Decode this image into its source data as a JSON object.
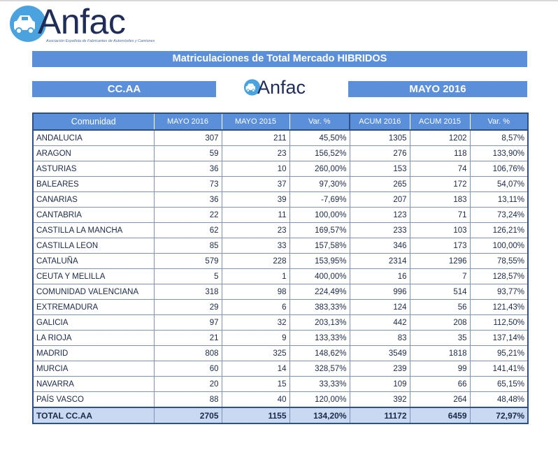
{
  "logo": {
    "brand": "Anfac",
    "tagline": "Asociación Española de Fabricantes de Automóviles y Camiones",
    "icon": "car-globe-icon"
  },
  "title": "Matriculaciones de Total Mercado HIBRIDOS",
  "sub_left": "CC.AA",
  "sub_right": "MAYO 2016",
  "colors": {
    "header_blue": "#5b8fd9",
    "total_row": "#c9d9f1",
    "border_dark": "#2d4f8a",
    "brand_navy": "#1f2d58"
  },
  "table": {
    "headers": [
      "Comunidad",
      "MAYO 2016",
      "MAYO 2015",
      "Var. %",
      "ACUM 2016",
      "ACUM 2015",
      "Var. %"
    ],
    "rows": [
      [
        "ANDALUCIA",
        "307",
        "211",
        "45,50%",
        "1305",
        "1202",
        "8,57%"
      ],
      [
        "ARAGON",
        "59",
        "23",
        "156,52%",
        "276",
        "118",
        "133,90%"
      ],
      [
        "ASTURIAS",
        "36",
        "10",
        "260,00%",
        "153",
        "74",
        "106,76%"
      ],
      [
        "BALEARES",
        "73",
        "37",
        "97,30%",
        "265",
        "172",
        "54,07%"
      ],
      [
        "CANARIAS",
        "36",
        "39",
        "-7,69%",
        "207",
        "183",
        "13,11%"
      ],
      [
        "CANTABRIA",
        "22",
        "11",
        "100,00%",
        "123",
        "71",
        "73,24%"
      ],
      [
        "CASTILLA LA MANCHA",
        "62",
        "23",
        "169,57%",
        "233",
        "103",
        "126,21%"
      ],
      [
        "CASTILLA LEON",
        "85",
        "33",
        "157,58%",
        "346",
        "173",
        "100,00%"
      ],
      [
        "CATALUÑA",
        "579",
        "228",
        "153,95%",
        "2314",
        "1296",
        "78,55%"
      ],
      [
        "CEUTA Y MELILLA",
        "5",
        "1",
        "400,00%",
        "16",
        "7",
        "128,57%"
      ],
      [
        "COMUNIDAD VALENCIANA",
        "318",
        "98",
        "224,49%",
        "996",
        "514",
        "93,77%"
      ],
      [
        "EXTREMADURA",
        "29",
        "6",
        "383,33%",
        "124",
        "56",
        "121,43%"
      ],
      [
        "GALICIA",
        "97",
        "32",
        "203,13%",
        "442",
        "208",
        "112,50%"
      ],
      [
        "LA RIOJA",
        "21",
        "9",
        "133,33%",
        "83",
        "35",
        "137,14%"
      ],
      [
        "MADRID",
        "808",
        "325",
        "148,62%",
        "3549",
        "1818",
        "95,21%"
      ],
      [
        "MURCIA",
        "60",
        "14",
        "328,57%",
        "239",
        "99",
        "141,41%"
      ],
      [
        "NAVARRA",
        "20",
        "15",
        "33,33%",
        "109",
        "66",
        "65,15%"
      ],
      [
        "PAÍS VASCO",
        "88",
        "40",
        "120,00%",
        "392",
        "264",
        "48,48%"
      ]
    ],
    "total": [
      "TOTAL CC.AA",
      "2705",
      "1155",
      "134,20%",
      "11172",
      "6459",
      "72,97%"
    ]
  }
}
